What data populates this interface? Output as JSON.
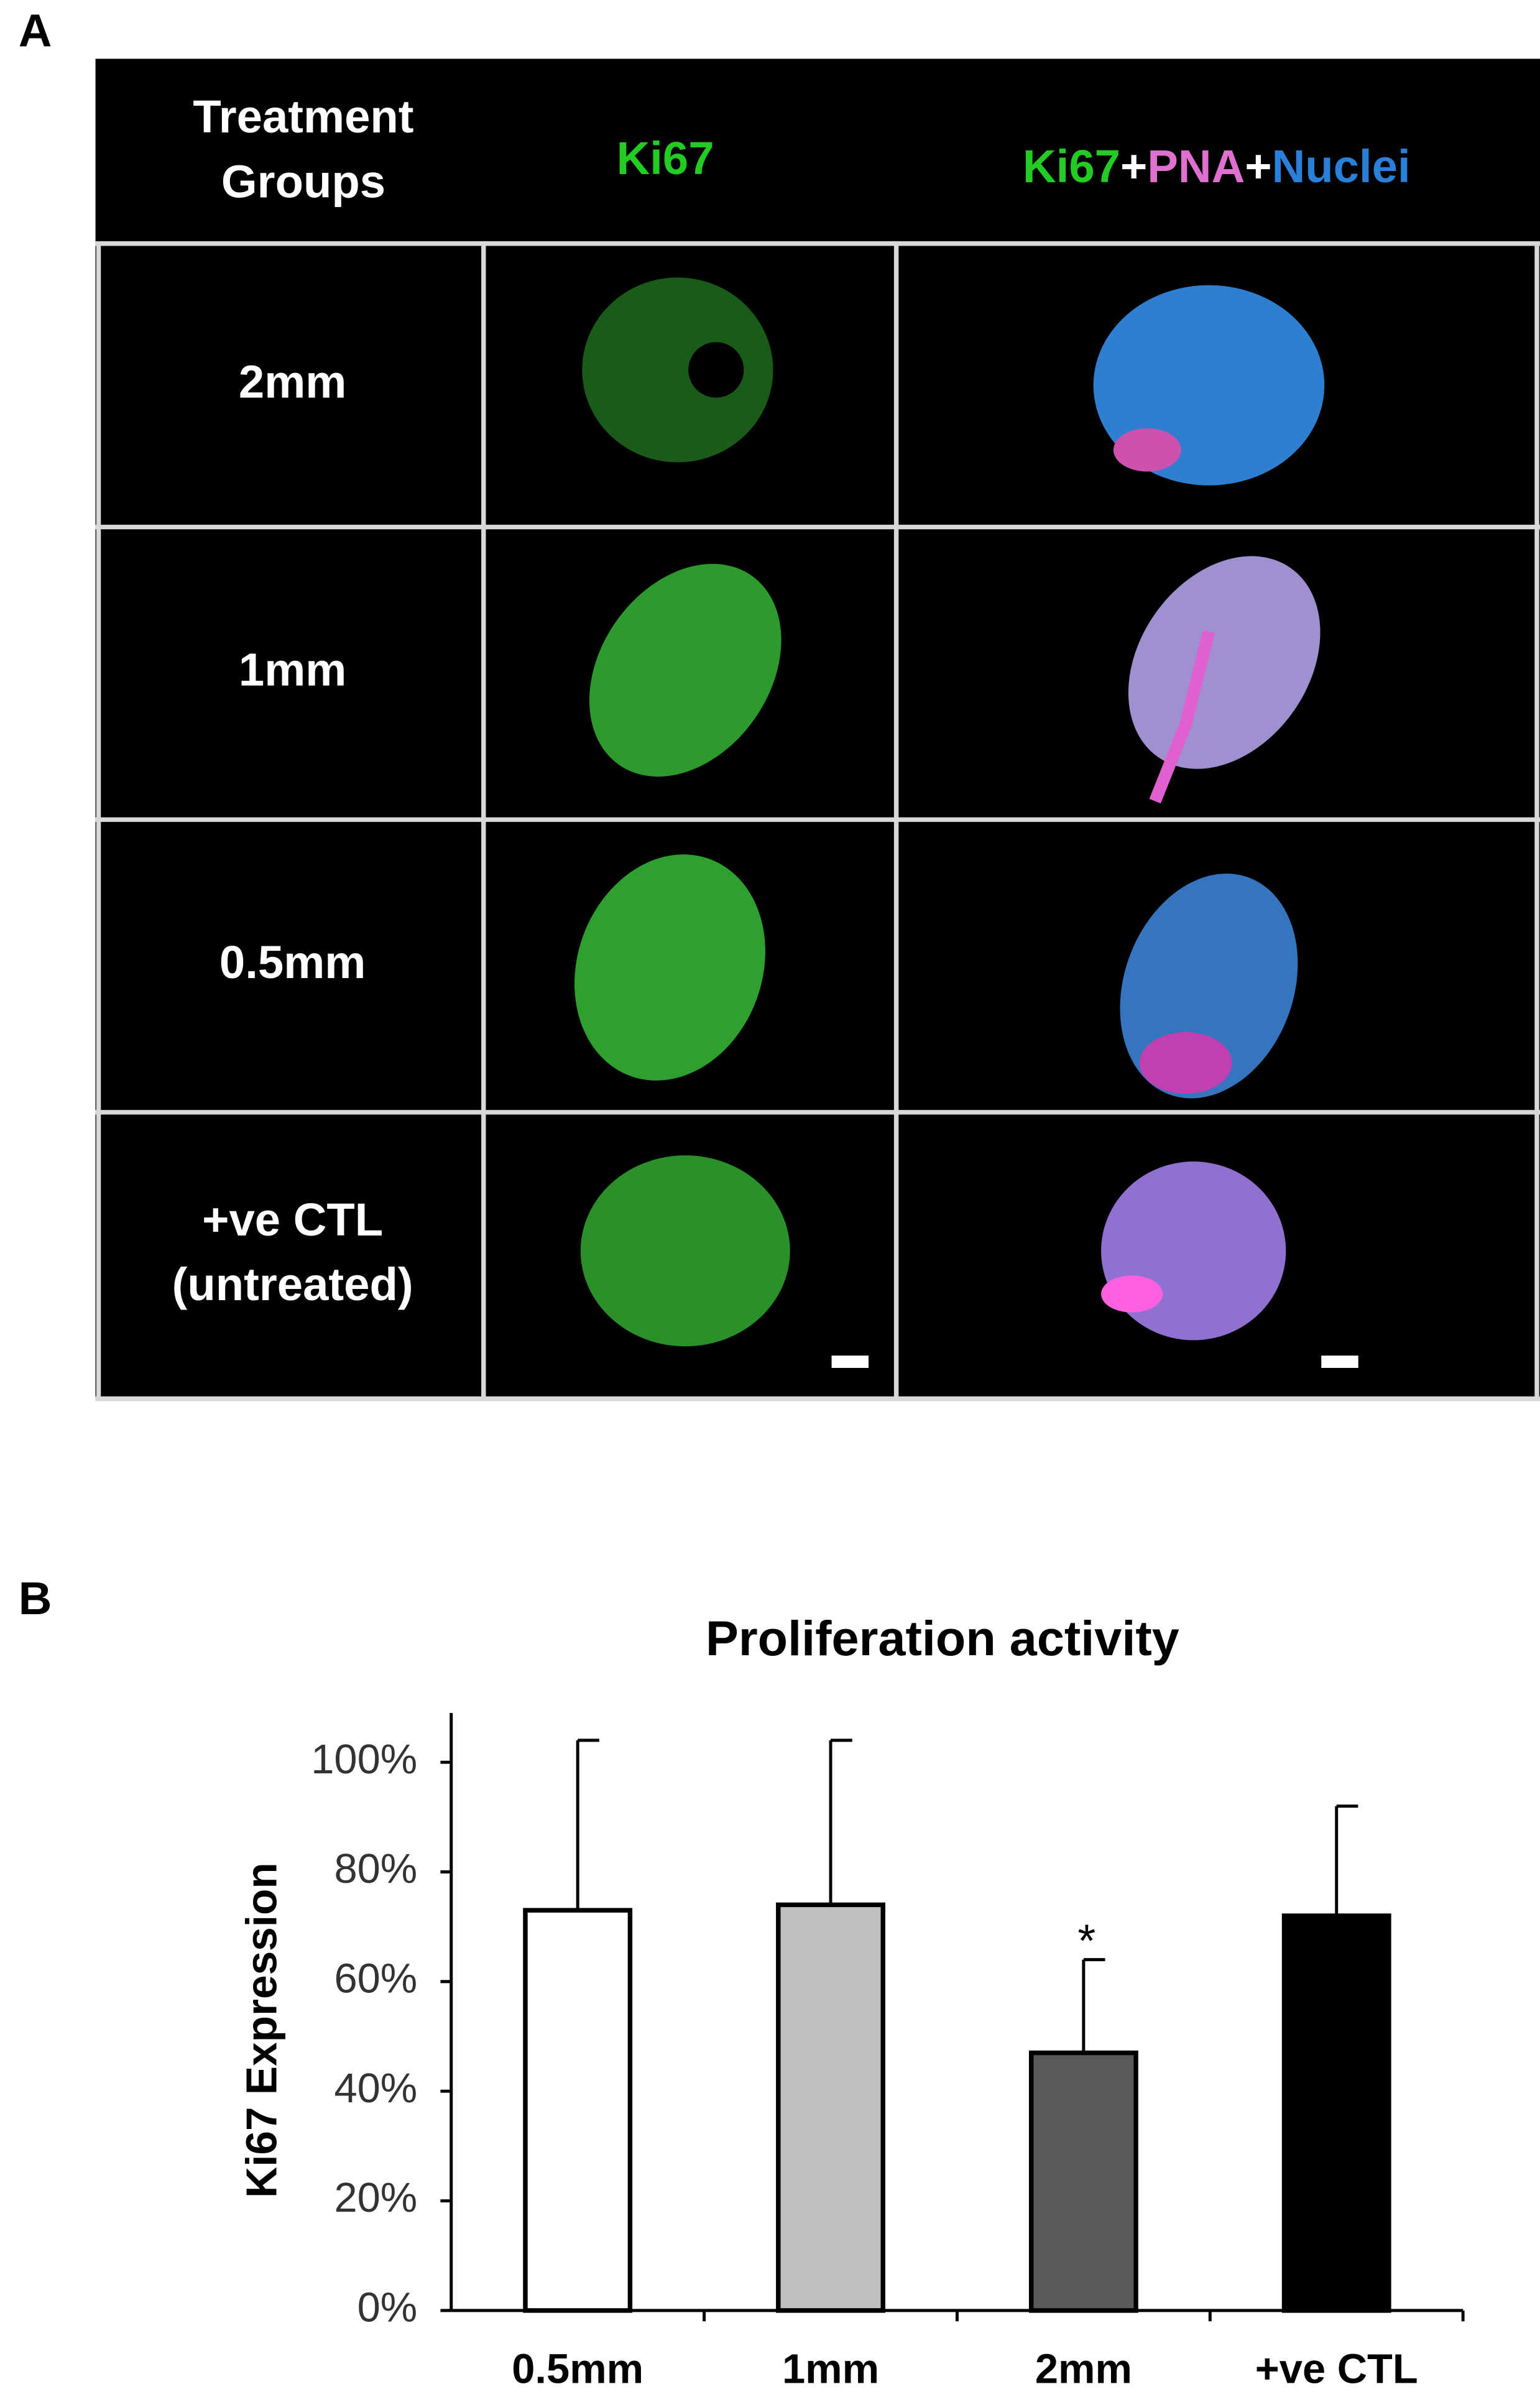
{
  "panel_labels": [
    "A",
    "B"
  ],
  "panel_a": {
    "header": {
      "groups": [
        "Treatment",
        "Groups"
      ],
      "ki67": "Ki67",
      "merge": [
        {
          "text": "Ki67",
          "color": "#22cc22"
        },
        {
          "text": "+",
          "color": "#ffffff"
        },
        {
          "text": "PNA",
          "color": "#e070d0"
        },
        {
          "text": "+",
          "color": "#ffffff"
        },
        {
          "text": "Nuclei",
          "color": "#2a7fd8"
        }
      ]
    },
    "rows": [
      [
        "2mm"
      ],
      [
        "1mm"
      ],
      [
        "0.5mm"
      ],
      [
        "+ve CTL",
        "(untreated)"
      ]
    ]
  },
  "chart_data": {
    "type": "bar",
    "title": "Proliferation activity",
    "y_label": "Ki67 Expression",
    "categories": [
      "0.5mm",
      "1mm",
      "2mm",
      "+ve CTL"
    ],
    "series": [
      {
        "values": [
          73,
          74,
          47,
          72
        ],
        "errors": [
          31,
          30,
          17,
          20
        ],
        "colors": [
          "#ffffff",
          "#c0c0c0",
          "#595959",
          "#000000"
        ]
      }
    ],
    "annotations": [
      {
        "category": 2,
        "text": "*"
      }
    ],
    "ylim": [
      0,
      109
    ],
    "yticks": [
      {
        "value": 0,
        "label": "0%"
      },
      {
        "value": 20,
        "label": "20%"
      },
      {
        "value": 40,
        "label": "40%"
      },
      {
        "value": 60,
        "label": "60%"
      },
      {
        "value": 80,
        "label": "80%"
      },
      {
        "value": 100,
        "label": "100%"
      }
    ]
  }
}
